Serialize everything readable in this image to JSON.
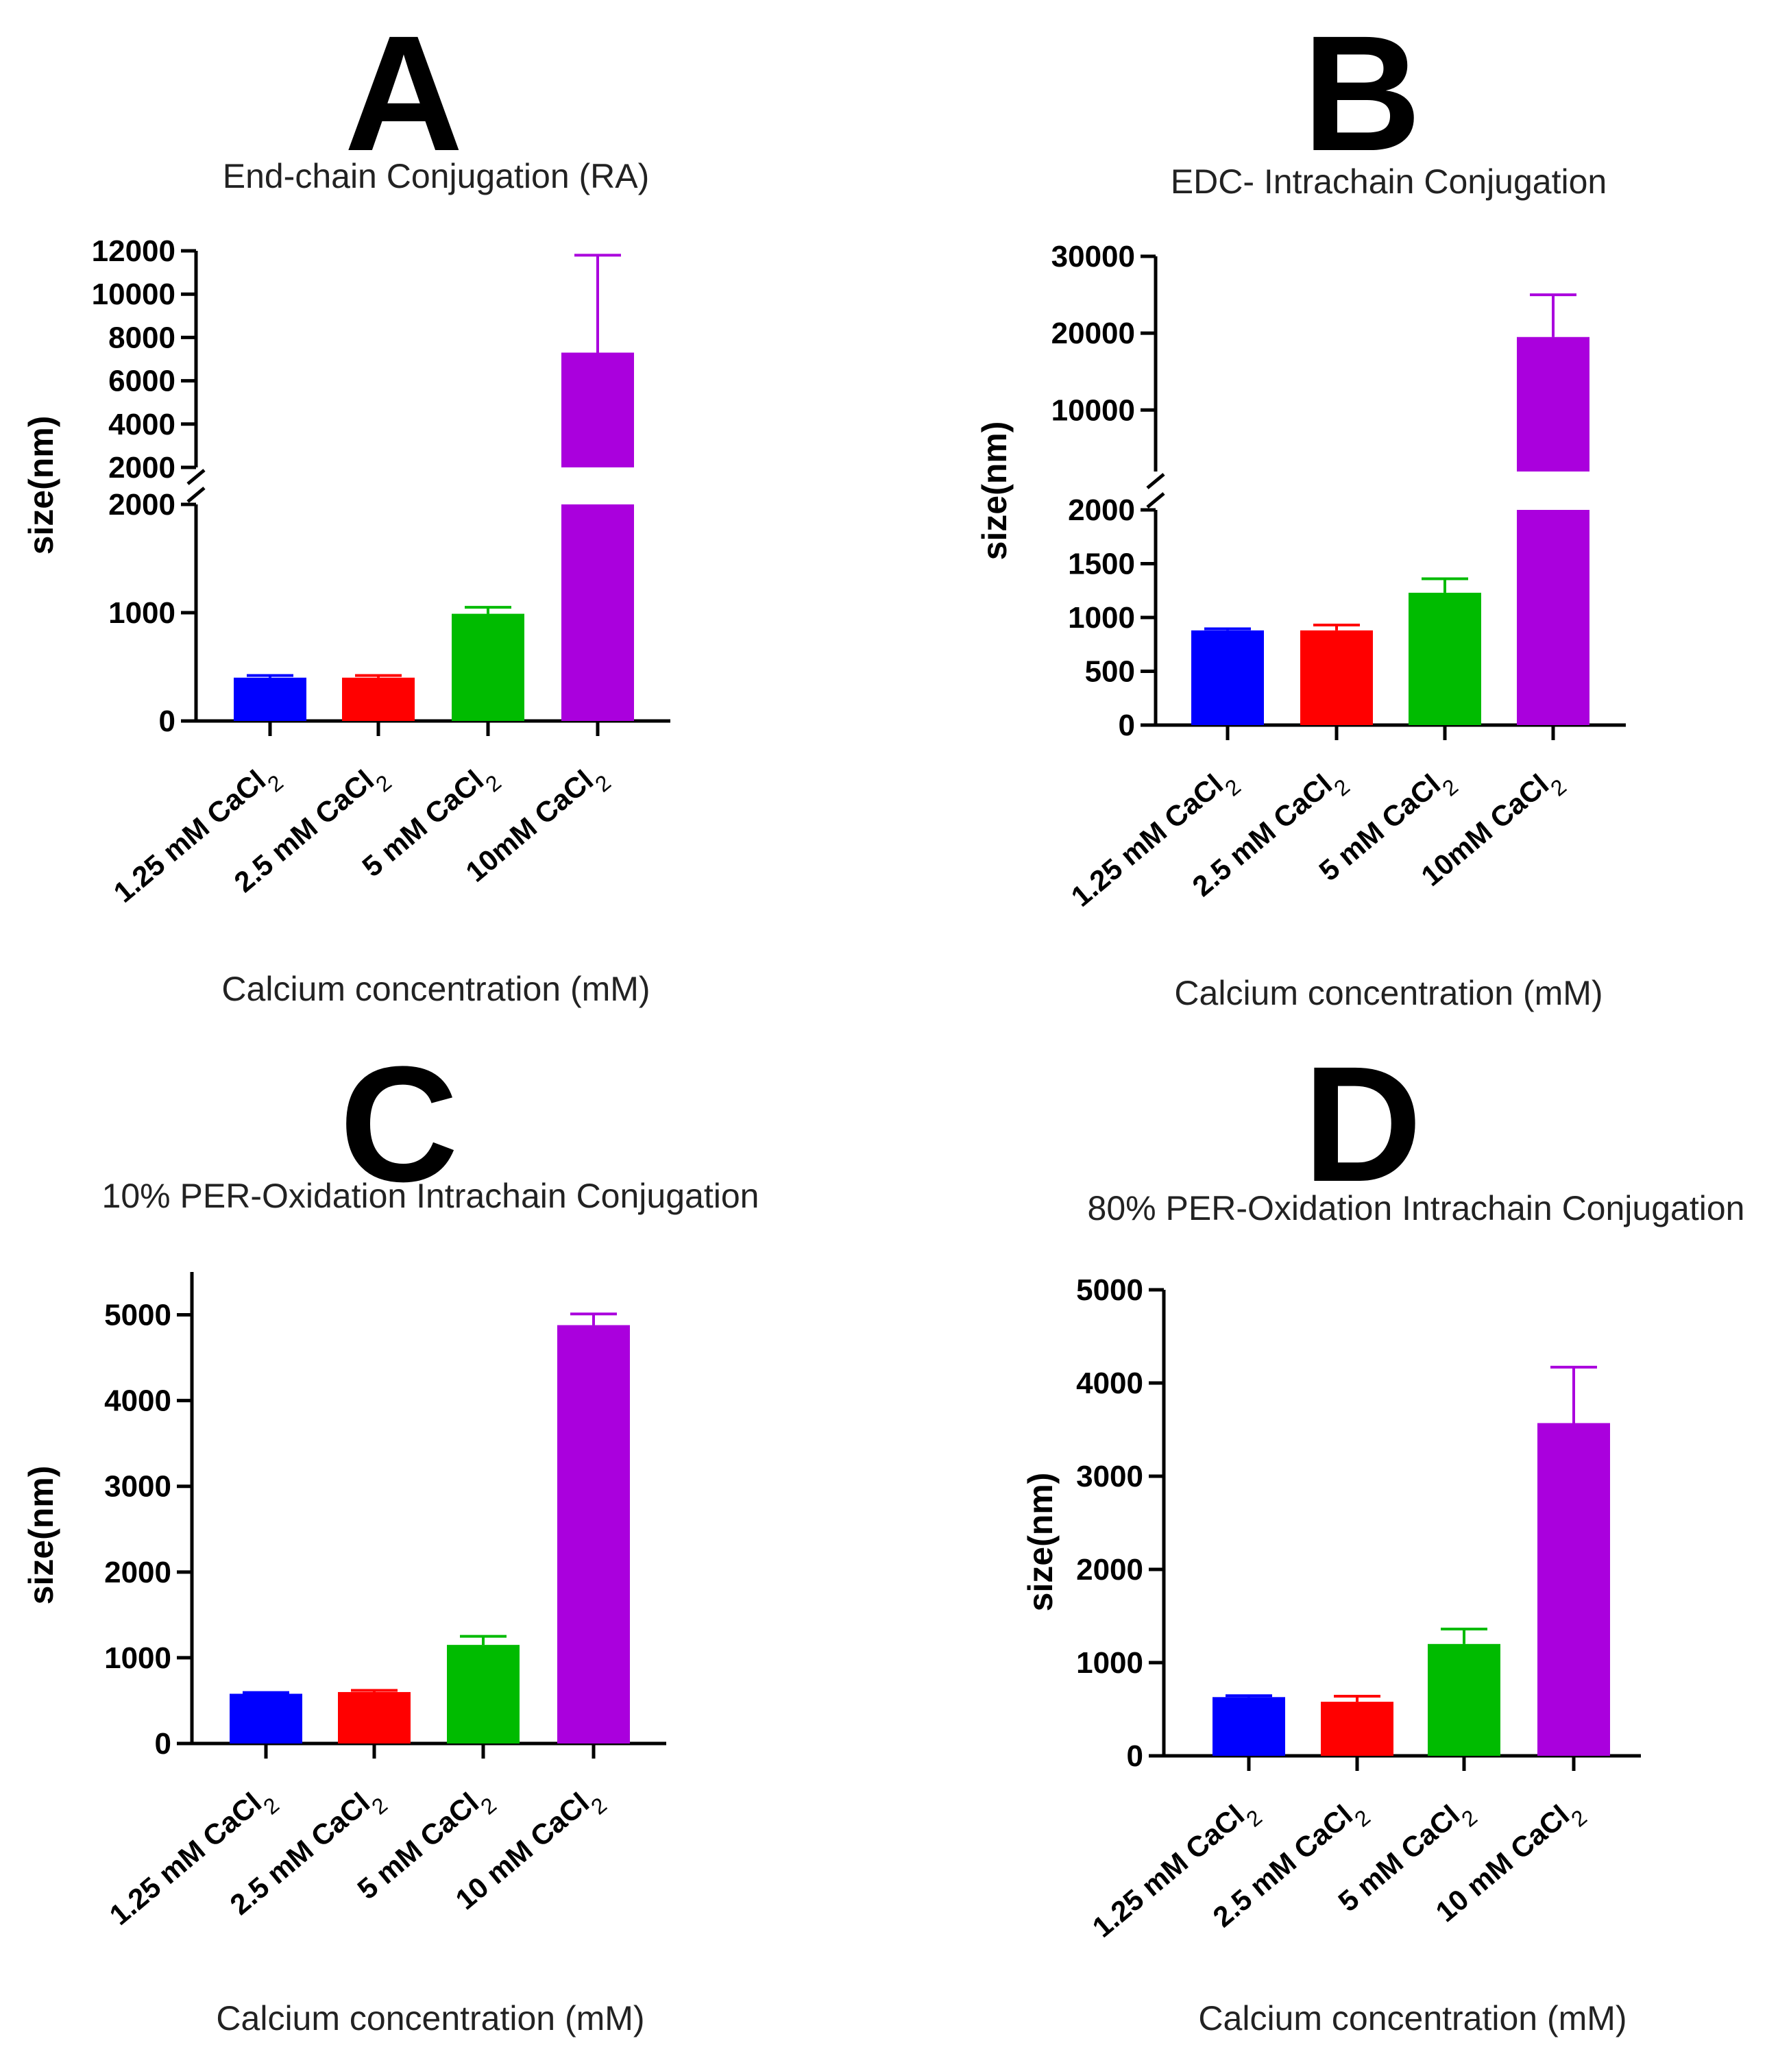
{
  "chart_data": [
    {
      "panel": "A",
      "type": "bar",
      "title": "End-chain Conjugation (RA)",
      "xlabel": "Calcium concentration (mM)",
      "ylabel": "size(nm)",
      "categories": [
        "1.25 mM CaCl2",
        "2.5 mM CaCl2",
        "5 mM CaCl2",
        "10mM CaCl2"
      ],
      "values": [
        400,
        400,
        990,
        7300
      ],
      "error": [
        20,
        20,
        60,
        4500
      ],
      "colors": [
        "#0000ff",
        "#ff0000",
        "#00bb00",
        "#aa00dd"
      ],
      "axis_break": true,
      "ylim_lower": [
        0,
        2000
      ],
      "ylim_upper": [
        2000,
        12000
      ],
      "yticks_lower": [
        "0",
        "1000",
        "2000"
      ],
      "yticks_upper": [
        "2000",
        "4000",
        "6000",
        "8000",
        "10000",
        "12000"
      ]
    },
    {
      "panel": "B",
      "type": "bar",
      "title": "EDC- Intrachain Conjugation",
      "xlabel": "Calcium concentration (mM)",
      "ylabel": "size(nm)",
      "categories": [
        "1.25 mM CaCl2",
        "2.5 mM CaCl2",
        "5 mM CaCl2",
        "10mM CaCl2"
      ],
      "values": [
        880,
        880,
        1230,
        19500
      ],
      "error": [
        15,
        50,
        130,
        5500
      ],
      "colors": [
        "#0000ff",
        "#ff0000",
        "#00bb00",
        "#aa00dd"
      ],
      "axis_break": true,
      "ylim_lower": [
        0,
        2000
      ],
      "ylim_upper": [
        2000,
        30000
      ],
      "yticks_lower": [
        "0",
        "500",
        "1000",
        "1500",
        "2000"
      ],
      "yticks_upper": [
        "10000",
        "20000",
        "30000"
      ]
    },
    {
      "panel": "C",
      "type": "bar",
      "title": "10% PER-Oxidation Intrachain Conjugation",
      "xlabel": "Calcium concentration (mM)",
      "ylabel": "size(nm)",
      "categories": [
        "1.25 mM CaCl2",
        "2.5 mM CaCl2",
        "5 mM CaCl2",
        "10 mM CaCl2"
      ],
      "values": [
        580,
        600,
        1150,
        4880
      ],
      "error": [
        15,
        20,
        100,
        130
      ],
      "colors": [
        "#0000ff",
        "#ff0000",
        "#00bb00",
        "#aa00dd"
      ],
      "axis_break": false,
      "ylim": [
        0,
        5500
      ],
      "yticks": [
        "0",
        "1000",
        "2000",
        "3000",
        "4000",
        "5000"
      ]
    },
    {
      "panel": "D",
      "type": "bar",
      "title": "80% PER-Oxidation Intrachain Conjugation",
      "xlabel": "Calcium concentration (mM)",
      "ylabel": "size(nm)",
      "categories": [
        "1.25 mM CaCl2",
        "2.5 mM CaCl2",
        "5 mM CaCl2",
        "10 mM CaCl2"
      ],
      "values": [
        630,
        580,
        1200,
        3570
      ],
      "error": [
        15,
        60,
        160,
        600
      ],
      "colors": [
        "#0000ff",
        "#ff0000",
        "#00bb00",
        "#aa00dd"
      ],
      "axis_break": false,
      "ylim": [
        0,
        5000
      ],
      "yticks": [
        "0",
        "1000",
        "2000",
        "3000",
        "4000",
        "5000"
      ]
    }
  ]
}
